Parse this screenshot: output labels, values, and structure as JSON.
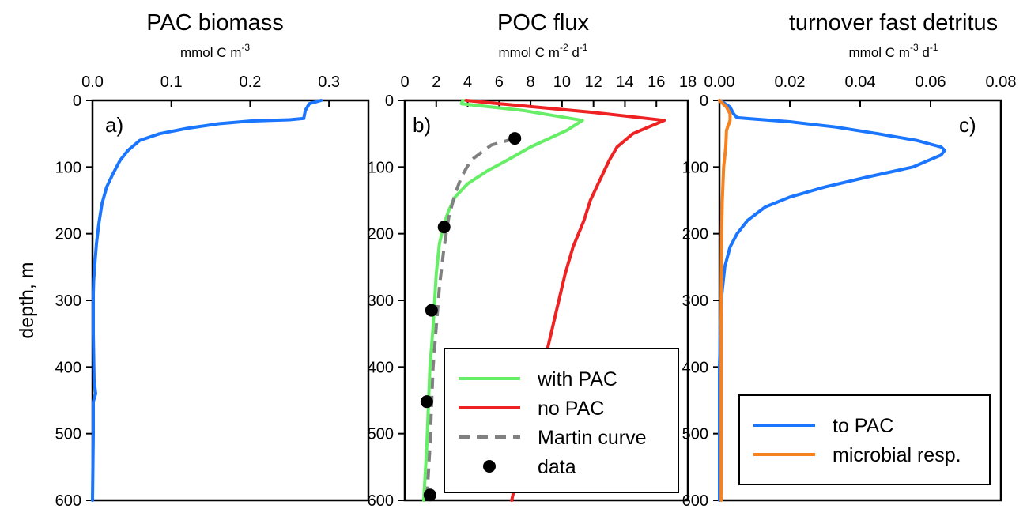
{
  "figure": {
    "ylabel": "depth, m"
  },
  "chart_data": [
    {
      "type": "line",
      "title": "PAC biomass",
      "unit_base": "mmol C m",
      "unit_sup": "-3",
      "panel_label": "a)",
      "xlim": [
        0,
        0.35
      ],
      "ylim": [
        0,
        600
      ],
      "x_ticks": [
        "0.0",
        "0.1",
        "0.2",
        "0.3"
      ],
      "x_tick_values": [
        0,
        0.1,
        0.2,
        0.3
      ],
      "y_ticks": [
        "0",
        "100",
        "200",
        "300",
        "400",
        "500",
        "600"
      ],
      "y_inverted": true,
      "series": [
        {
          "name": "PAC biomass",
          "color": "#1a75ff",
          "style": "solid",
          "points": [
            [
              0.29,
              0
            ],
            [
              0.275,
              5
            ],
            [
              0.27,
              15
            ],
            [
              0.268,
              27
            ],
            [
              0.25,
              29
            ],
            [
              0.2,
              31
            ],
            [
              0.16,
              35
            ],
            [
              0.12,
              42
            ],
            [
              0.085,
              50
            ],
            [
              0.06,
              60
            ],
            [
              0.045,
              75
            ],
            [
              0.035,
              90
            ],
            [
              0.026,
              110
            ],
            [
              0.018,
              130
            ],
            [
              0.012,
              155
            ],
            [
              0.008,
              185
            ],
            [
              0.005,
              215
            ],
            [
              0.003,
              245
            ],
            [
              0.0015,
              270
            ],
            [
              0.001,
              290
            ],
            [
              0.001,
              350
            ],
            [
              0.002,
              420
            ],
            [
              0.004,
              440
            ],
            [
              0.001,
              452
            ],
            [
              0.001,
              500
            ],
            [
              0.0,
              600
            ]
          ]
        }
      ]
    },
    {
      "type": "line",
      "title": "POC flux",
      "unit_base": "mmol C m",
      "unit_sup": "-2",
      "unit_mid": " d",
      "unit_sup2": "-1",
      "panel_label": "b)",
      "xlim": [
        0,
        18
      ],
      "ylim": [
        0,
        600
      ],
      "x_ticks": [
        "0",
        "2",
        "4",
        "6",
        "8",
        "10",
        "12",
        "14",
        "16",
        "18"
      ],
      "x_tick_values": [
        0,
        2,
        4,
        6,
        8,
        10,
        12,
        14,
        16,
        18
      ],
      "y_ticks": [
        "0",
        "100",
        "200",
        "300",
        "400",
        "500",
        "600"
      ],
      "y_inverted": true,
      "series": [
        {
          "name": "with PAC",
          "color": "#66ee66",
          "style": "solid",
          "points": [
            [
              3.7,
              0
            ],
            [
              3.6,
              5
            ],
            [
              7.5,
              15
            ],
            [
              11.3,
              30
            ],
            [
              10.3,
              45
            ],
            [
              8.0,
              70
            ],
            [
              6.5,
              90
            ],
            [
              5.3,
              105
            ],
            [
              4.0,
              125
            ],
            [
              3.2,
              145
            ],
            [
              2.8,
              165
            ],
            [
              2.5,
              185
            ],
            [
              2.2,
              215
            ],
            [
              2.0,
              260
            ],
            [
              1.9,
              300
            ],
            [
              1.8,
              340
            ],
            [
              1.6,
              400
            ],
            [
              1.5,
              460
            ],
            [
              1.4,
              520
            ],
            [
              1.2,
              600
            ]
          ]
        },
        {
          "name": "no PAC",
          "color": "#ee2222",
          "style": "solid",
          "points": [
            [
              3.9,
              0
            ],
            [
              6.0,
              5
            ],
            [
              12.0,
              18
            ],
            [
              16.5,
              30
            ],
            [
              15.5,
              40
            ],
            [
              14.5,
              50
            ],
            [
              13.5,
              70
            ],
            [
              13.0,
              90
            ],
            [
              12.4,
              120
            ],
            [
              11.8,
              150
            ],
            [
              11.4,
              180
            ],
            [
              10.7,
              220
            ],
            [
              10.2,
              260
            ],
            [
              9.8,
              300
            ],
            [
              9.3,
              350
            ],
            [
              8.8,
              400
            ],
            [
              8.3,
              450
            ],
            [
              7.7,
              510
            ],
            [
              7.3,
              550
            ],
            [
              6.8,
              600
            ]
          ]
        },
        {
          "name": "Martin curve",
          "color": "#808080",
          "style": "dashed",
          "points": [
            [
              7.0,
              57
            ],
            [
              5.5,
              67
            ],
            [
              4.2,
              90
            ],
            [
              3.6,
              115
            ],
            [
              3.2,
              140
            ],
            [
              2.8,
              175
            ],
            [
              2.5,
              220
            ],
            [
              2.2,
              280
            ],
            [
              2.0,
              340
            ],
            [
              1.8,
              400
            ],
            [
              1.7,
              460
            ],
            [
              1.6,
              520
            ],
            [
              1.5,
              560
            ],
            [
              1.4,
              600
            ]
          ]
        },
        {
          "name": "data",
          "color": "#000000",
          "style": "markers",
          "points": [
            [
              7.0,
              57
            ],
            [
              2.5,
              190
            ],
            [
              1.7,
              315
            ],
            [
              1.4,
              452
            ],
            [
              1.6,
              592
            ]
          ]
        }
      ]
    },
    {
      "type": "line",
      "title": "turnover fast detritus",
      "unit_base": "mmol C m",
      "unit_sup": "-3",
      "unit_mid": " d",
      "unit_sup2": "-1",
      "panel_label": "c)",
      "xlim": [
        0,
        0.08
      ],
      "ylim": [
        0,
        600
      ],
      "x_ticks": [
        "0.00",
        "0.02",
        "0.04",
        "0.06",
        "0.08"
      ],
      "x_tick_values": [
        0,
        0.02,
        0.04,
        0.06,
        0.08
      ],
      "y_ticks": [
        "0",
        "100",
        "200",
        "300",
        "400",
        "500",
        "600"
      ],
      "y_inverted": true,
      "series": [
        {
          "name": "to PAC",
          "color": "#1a75ff",
          "style": "solid",
          "points": [
            [
              0.0,
              0
            ],
            [
              0.001,
              3
            ],
            [
              0.003,
              10
            ],
            [
              0.004,
              20
            ],
            [
              0.005,
              26
            ],
            [
              0.01,
              28
            ],
            [
              0.02,
              32
            ],
            [
              0.033,
              40
            ],
            [
              0.045,
              50
            ],
            [
              0.056,
              60
            ],
            [
              0.063,
              70
            ],
            [
              0.064,
              75
            ],
            [
              0.063,
              82
            ],
            [
              0.055,
              100
            ],
            [
              0.042,
              115
            ],
            [
              0.03,
              130
            ],
            [
              0.02,
              145
            ],
            [
              0.013,
              160
            ],
            [
              0.008,
              180
            ],
            [
              0.005,
              200
            ],
            [
              0.003,
              220
            ],
            [
              0.0015,
              250
            ],
            [
              0.0007,
              290
            ],
            [
              0.0003,
              350
            ],
            [
              0.0,
              400
            ],
            [
              0.0,
              600
            ]
          ]
        },
        {
          "name": "microbial resp.",
          "color": "#f5821f",
          "style": "solid",
          "points": [
            [
              0.0,
              0
            ],
            [
              0.002,
              10
            ],
            [
              0.003,
              20
            ],
            [
              0.003,
              30
            ],
            [
              0.002,
              45
            ],
            [
              0.0018,
              70
            ],
            [
              0.0012,
              100
            ],
            [
              0.0008,
              150
            ],
            [
              0.0006,
              200
            ],
            [
              0.0005,
              300
            ],
            [
              0.0005,
              400
            ],
            [
              0.0005,
              500
            ],
            [
              0.0005,
              600
            ]
          ]
        }
      ],
      "legend_position": "lower-right"
    }
  ],
  "legends": {
    "b": [
      "with PAC",
      "no PAC",
      "Martin curve",
      "data"
    ],
    "c": [
      "to PAC",
      "microbial resp."
    ]
  }
}
